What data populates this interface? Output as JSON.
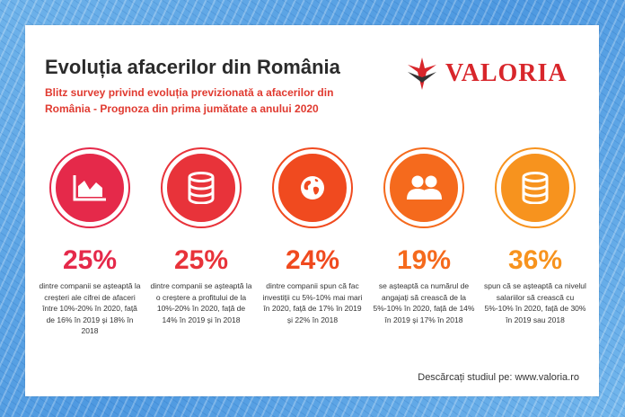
{
  "header": {
    "title": "Evoluția afacerilor din România",
    "subtitle": "Blitz survey privind evoluția previzionată a afacerilor din România - Prognoza din prima jumătate a anului 2020"
  },
  "logo": {
    "text": "VALORIA",
    "color": "#d8262b"
  },
  "stats": [
    {
      "icon": "area-chart-icon",
      "color": "#e5294a",
      "percent": "25%",
      "text": "dintre companii se așteaptă la creșteri ale cifrei de afaceri între 10%-20% în 2020, față de 16% în 2019 și 18% în 2018"
    },
    {
      "icon": "database-icon",
      "color": "#e8333a",
      "percent": "25%",
      "text": "dintre companii se așteaptă la o creștere a profitului de la 10%-20% în 2020, față de 14% în 2019 și în 2018"
    },
    {
      "icon": "globe-icon",
      "color": "#f04a1f",
      "percent": "24%",
      "text": "dintre companii spun că fac investiții cu 5%-10% mai mari în 2020, față de 17% în 2019 și 22% în 2018"
    },
    {
      "icon": "users-icon",
      "color": "#f56a1d",
      "percent": "19%",
      "text": "se așteaptă ca numărul de angajați să crească de la 5%-10% în 2020, față de 14% în 2019 și 17% în 2018"
    },
    {
      "icon": "database-icon",
      "color": "#f7931e",
      "percent": "36%",
      "text": "spun că se așteaptă ca nivelul salariilor să crească cu 5%-10% în 2020, față de 30% în 2019 sau 2018"
    }
  ],
  "footer": {
    "text": "Descărcați studiul pe: www.valoria.ro"
  }
}
